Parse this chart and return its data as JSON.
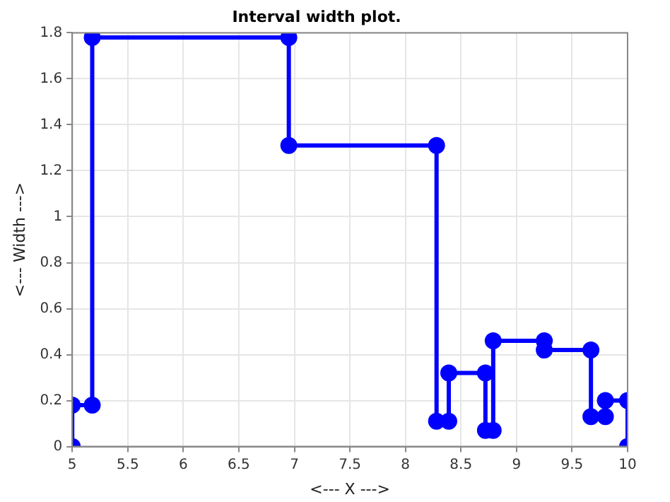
{
  "chart_data": {
    "type": "line",
    "title": "Interval width plot.",
    "xlabel": "<--- X --->",
    "ylabel": "<--- Width --->",
    "x": [
      5,
      5,
      5.18,
      5.18,
      6.95,
      6.95,
      8.28,
      8.28,
      8.39,
      8.39,
      8.72,
      8.72,
      8.79,
      8.79,
      9.25,
      9.25,
      9.67,
      9.67,
      9.8,
      9.8,
      10,
      10
    ],
    "series": [
      {
        "color": "#0000ff",
        "values": [
          0,
          0.18,
          0.18,
          1.78,
          1.78,
          1.31,
          1.31,
          0.11,
          0.11,
          0.32,
          0.32,
          0.07,
          0.07,
          0.46,
          0.46,
          0.42,
          0.42,
          0.13,
          0.13,
          0.2,
          0.2,
          0
        ]
      }
    ],
    "xlim": [
      5,
      10
    ],
    "xticks": [
      5,
      5.5,
      6,
      6.5,
      7,
      7.5,
      8,
      8.5,
      9,
      9.5,
      10
    ],
    "ylim": [
      0,
      1.8
    ],
    "yticks": [
      0,
      0.2,
      0.4,
      0.6,
      0.8,
      1,
      1.2,
      1.4,
      1.6,
      1.8
    ],
    "grid": true,
    "legend": false,
    "marker": "circle",
    "line_style": "solid"
  }
}
